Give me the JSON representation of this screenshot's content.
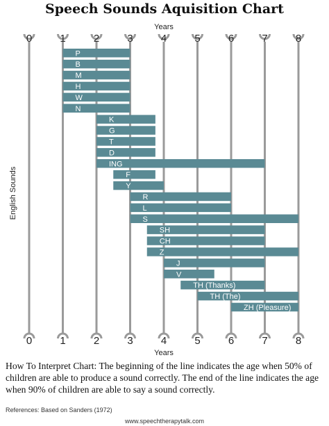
{
  "chart_data": {
    "type": "bar",
    "title": "Speech Sounds Aquisition Chart",
    "xlabel": "Years",
    "ylabel": "English Sounds",
    "xlim": [
      0,
      8
    ],
    "x_ticks": [
      "0",
      "1",
      "2",
      "3",
      "4",
      "5",
      "6",
      "7",
      "8"
    ],
    "grid": true,
    "bar_color": "#5a8a94",
    "sounds": [
      {
        "label": "P",
        "start": 1,
        "end": 3
      },
      {
        "label": "B",
        "start": 1,
        "end": 3
      },
      {
        "label": "M",
        "start": 1,
        "end": 3
      },
      {
        "label": "H",
        "start": 1,
        "end": 3
      },
      {
        "label": "W",
        "start": 1,
        "end": 3
      },
      {
        "label": "N",
        "start": 1,
        "end": 3
      },
      {
        "label": "K",
        "start": 2,
        "end": 3.75
      },
      {
        "label": "G",
        "start": 2,
        "end": 3.75
      },
      {
        "label": "T",
        "start": 2,
        "end": 3.75
      },
      {
        "label": "D",
        "start": 2,
        "end": 3.75
      },
      {
        "label": "ING",
        "start": 2,
        "end": 7
      },
      {
        "label": "F",
        "start": 2.5,
        "end": 3.75
      },
      {
        "label": "Y",
        "start": 2.5,
        "end": 4
      },
      {
        "label": "R",
        "start": 3,
        "end": 6
      },
      {
        "label": "L",
        "start": 3,
        "end": 6
      },
      {
        "label": "S",
        "start": 3,
        "end": 8
      },
      {
        "label": "SH",
        "start": 3.5,
        "end": 7
      },
      {
        "label": "CH",
        "start": 3.5,
        "end": 7
      },
      {
        "label": "Z",
        "start": 3.5,
        "end": 8
      },
      {
        "label": "J",
        "start": 4,
        "end": 7
      },
      {
        "label": "V",
        "start": 4,
        "end": 5.5
      },
      {
        "label": "TH (Thanks)",
        "start": 4.5,
        "end": 7
      },
      {
        "label": "TH (The)",
        "start": 5,
        "end": 8
      },
      {
        "label": "ZH (Pleasure)",
        "start": 6,
        "end": 8
      }
    ]
  },
  "caption": "How To Interpret Chart: The beginning of the line indicates the age when 50% of children are able to produce a sound correctly. The end of the line indicates the age when 90% of children are able to say a sound correctly.",
  "references": "References: Based on Sanders (1972)",
  "website": "www.speechtherapytalk.com"
}
